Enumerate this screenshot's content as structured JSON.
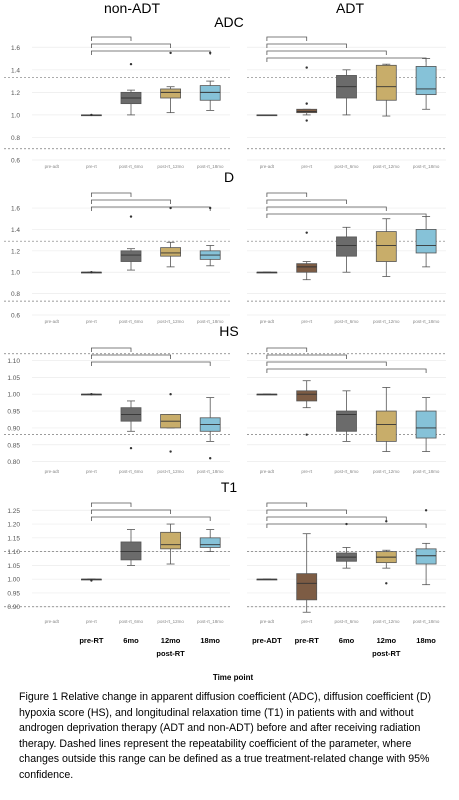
{
  "column_titles": [
    "non-ADT",
    "ADT"
  ],
  "x_axis": {
    "small_ticks": [
      "pre-adt",
      "pre-rt",
      "post-rt_6mo",
      "post-rt_12mo",
      "post-rt_18mo"
    ],
    "labels_nonadt": [
      "pre-RT",
      "6mo",
      "12mo",
      "18mo"
    ],
    "labels_adt": [
      "pre-ADT",
      "pre-RT",
      "6mo",
      "12mo",
      "18mo"
    ],
    "group_label": "post-RT",
    "title": "Time point"
  },
  "colors": {
    "dark_brown": "#7d5c44",
    "grey": "#6b6b6b",
    "tan": "#c8ad6a",
    "blue": "#86c2d8",
    "dashed_line": "#7a7a7a"
  },
  "chart_data": [
    {
      "type": "boxplot",
      "title": "ADC",
      "ylim": [
        0.6,
        1.7
      ],
      "yticks": [
        "0.6",
        "0.8",
        "1.0",
        "1.2",
        "1.4",
        "1.6"
      ],
      "repeatability_lines": [
        1.33,
        0.7
      ],
      "grid": true,
      "panels": [
        {
          "group": "non-ADT",
          "boxes": [
            {
              "tick": "pre-rt",
              "color": "none",
              "stats": [
                1.0,
                1.0,
                1.0,
                1.0,
                1.0
              ],
              "outliers": [
                1.0
              ]
            },
            {
              "tick": "post-rt_6mo",
              "color": "grey",
              "stats": [
                1.0,
                1.1,
                1.15,
                1.2,
                1.22
              ],
              "outliers": [
                1.45
              ]
            },
            {
              "tick": "post-rt_12mo",
              "color": "tan",
              "stats": [
                1.02,
                1.15,
                1.2,
                1.23,
                1.25
              ],
              "outliers": [
                1.55
              ]
            },
            {
              "tick": "post-rt_18mo",
              "color": "blue",
              "stats": [
                1.04,
                1.13,
                1.2,
                1.26,
                1.3
              ],
              "outliers": [
                1.55
              ]
            }
          ],
          "brackets": [
            [
              "pre-rt",
              "post-rt_6mo"
            ],
            [
              "pre-rt",
              "post-rt_12mo"
            ],
            [
              "pre-rt",
              "post-rt_18mo"
            ]
          ]
        },
        {
          "group": "ADT",
          "boxes": [
            {
              "tick": "pre-adt",
              "color": "none",
              "stats": [
                1.0,
                1.0,
                1.0,
                1.0,
                1.0
              ],
              "outliers": []
            },
            {
              "tick": "pre-rt",
              "color": "dark_brown",
              "stats": [
                1.0,
                1.02,
                1.03,
                1.05,
                1.05
              ],
              "outliers": [
                1.42,
                1.1,
                0.95
              ]
            },
            {
              "tick": "post-rt_6mo",
              "color": "grey",
              "stats": [
                1.0,
                1.15,
                1.25,
                1.35,
                1.4
              ],
              "outliers": []
            },
            {
              "tick": "post-rt_12mo",
              "color": "tan",
              "stats": [
                0.99,
                1.13,
                1.25,
                1.44,
                1.45
              ],
              "outliers": []
            },
            {
              "tick": "post-rt_18mo",
              "color": "blue",
              "stats": [
                1.05,
                1.18,
                1.23,
                1.43,
                1.5
              ],
              "outliers": []
            }
          ],
          "brackets": [
            [
              "pre-adt",
              "pre-rt"
            ],
            [
              "pre-adt",
              "post-rt_6mo"
            ],
            [
              "pre-adt",
              "post-rt_12mo"
            ],
            [
              "pre-adt",
              "post-rt_18mo"
            ]
          ]
        }
      ]
    },
    {
      "type": "boxplot",
      "title": "D",
      "ylim": [
        0.6,
        1.75
      ],
      "yticks": [
        "0.6",
        "0.8",
        "1.0",
        "1.2",
        "1.4",
        "1.6"
      ],
      "repeatability_lines": [
        1.29,
        0.73
      ],
      "grid": true,
      "panels": [
        {
          "group": "non-ADT",
          "boxes": [
            {
              "tick": "pre-rt",
              "color": "none",
              "stats": [
                1.0,
                1.0,
                1.0,
                1.0,
                1.0
              ],
              "outliers": [
                1.0
              ]
            },
            {
              "tick": "post-rt_6mo",
              "color": "grey",
              "stats": [
                1.02,
                1.1,
                1.16,
                1.2,
                1.22
              ],
              "outliers": [
                1.52
              ]
            },
            {
              "tick": "post-rt_12mo",
              "color": "tan",
              "stats": [
                1.05,
                1.15,
                1.18,
                1.23,
                1.28
              ],
              "outliers": [
                1.6
              ]
            },
            {
              "tick": "post-rt_18mo",
              "color": "blue",
              "stats": [
                1.06,
                1.12,
                1.16,
                1.2,
                1.25
              ],
              "outliers": [
                1.6
              ]
            }
          ],
          "brackets": [
            [
              "pre-rt",
              "post-rt_6mo"
            ],
            [
              "pre-rt",
              "post-rt_12mo"
            ],
            [
              "pre-rt",
              "post-rt_18mo"
            ]
          ]
        },
        {
          "group": "ADT",
          "boxes": [
            {
              "tick": "pre-adt",
              "color": "none",
              "stats": [
                1.0,
                1.0,
                1.0,
                1.0,
                1.0
              ],
              "outliers": []
            },
            {
              "tick": "pre-rt",
              "color": "dark_brown",
              "stats": [
                0.93,
                1.0,
                1.05,
                1.08,
                1.1
              ],
              "outliers": [
                1.37
              ]
            },
            {
              "tick": "post-rt_6mo",
              "color": "grey",
              "stats": [
                1.0,
                1.15,
                1.25,
                1.33,
                1.42
              ],
              "outliers": []
            },
            {
              "tick": "post-rt_12mo",
              "color": "tan",
              "stats": [
                0.96,
                1.1,
                1.25,
                1.38,
                1.5
              ],
              "outliers": []
            },
            {
              "tick": "post-rt_18mo",
              "color": "blue",
              "stats": [
                1.05,
                1.18,
                1.25,
                1.4,
                1.52
              ],
              "outliers": []
            }
          ],
          "brackets": [
            [
              "pre-adt",
              "pre-rt"
            ],
            [
              "pre-adt",
              "post-rt_6mo"
            ],
            [
              "pre-adt",
              "post-rt_12mo"
            ],
            [
              "pre-adt",
              "post-rt_18mo"
            ]
          ]
        }
      ]
    },
    {
      "type": "boxplot",
      "title": "HS",
      "ylim": [
        0.79,
        1.14
      ],
      "yticks": [
        "0.80",
        "0.85",
        "0.90",
        "0.95",
        "1.00",
        "1.05",
        "1.10"
      ],
      "repeatability_lines": [
        1.12,
        0.88
      ],
      "grid": true,
      "panels": [
        {
          "group": "non-ADT",
          "boxes": [
            {
              "tick": "pre-rt",
              "color": "none",
              "stats": [
                1.0,
                1.0,
                1.0,
                1.0,
                1.0
              ],
              "outliers": [
                1.0
              ]
            },
            {
              "tick": "post-rt_6mo",
              "color": "grey",
              "stats": [
                0.89,
                0.92,
                0.94,
                0.96,
                0.98
              ],
              "outliers": [
                0.84
              ]
            },
            {
              "tick": "post-rt_12mo",
              "color": "tan",
              "stats": [
                0.9,
                0.9,
                0.92,
                0.94,
                0.94
              ],
              "outliers": [
                1.0,
                0.83
              ]
            },
            {
              "tick": "post-rt_18mo",
              "color": "blue",
              "stats": [
                0.86,
                0.89,
                0.91,
                0.93,
                0.99
              ],
              "outliers": [
                0.81
              ]
            }
          ],
          "brackets": [
            [
              "pre-rt",
              "post-rt_6mo"
            ],
            [
              "pre-rt",
              "post-rt_12mo"
            ],
            [
              "pre-rt",
              "post-rt_18mo"
            ]
          ]
        },
        {
          "group": "ADT",
          "boxes": [
            {
              "tick": "pre-adt",
              "color": "none",
              "stats": [
                1.0,
                1.0,
                1.0,
                1.0,
                1.0
              ],
              "outliers": []
            },
            {
              "tick": "pre-rt",
              "color": "dark_brown",
              "stats": [
                0.96,
                0.98,
                1.0,
                1.01,
                1.04
              ],
              "outliers": [
                0.88
              ]
            },
            {
              "tick": "post-rt_6mo",
              "color": "grey",
              "stats": [
                0.86,
                0.89,
                0.94,
                0.95,
                1.01
              ],
              "outliers": []
            },
            {
              "tick": "post-rt_12mo",
              "color": "tan",
              "stats": [
                0.83,
                0.86,
                0.91,
                0.95,
                1.02
              ],
              "outliers": []
            },
            {
              "tick": "post-rt_18mo",
              "color": "blue",
              "stats": [
                0.83,
                0.87,
                0.9,
                0.95,
                0.99
              ],
              "outliers": []
            }
          ],
          "brackets": [
            [
              "pre-adt",
              "pre-rt"
            ],
            [
              "pre-adt",
              "post-rt_6mo"
            ],
            [
              "pre-adt",
              "post-rt_12mo"
            ],
            [
              "pre-adt",
              "post-rt_18mo"
            ]
          ]
        }
      ]
    },
    {
      "type": "boxplot",
      "title": "T1",
      "ylim": [
        0.87,
        1.28
      ],
      "yticks": [
        "0.90",
        "0.95",
        "1.00",
        "1.05",
        "1.10",
        "1.15",
        "1.20",
        "1.25"
      ],
      "repeatability_lines": [
        1.1,
        0.9
      ],
      "grid": true,
      "panels": [
        {
          "group": "non-ADT",
          "boxes": [
            {
              "tick": "pre-rt",
              "color": "none",
              "stats": [
                1.0,
                1.0,
                1.0,
                1.0,
                1.0
              ],
              "outliers": [
                0.995
              ]
            },
            {
              "tick": "post-rt_6mo",
              "color": "grey",
              "stats": [
                1.05,
                1.07,
                1.1,
                1.135,
                1.18
              ],
              "outliers": []
            },
            {
              "tick": "post-rt_12mo",
              "color": "tan",
              "stats": [
                1.055,
                1.11,
                1.125,
                1.17,
                1.2
              ],
              "outliers": []
            },
            {
              "tick": "post-rt_18mo",
              "color": "blue",
              "stats": [
                1.1,
                1.115,
                1.125,
                1.15,
                1.18
              ],
              "outliers": []
            }
          ],
          "brackets": [
            [
              "pre-rt",
              "post-rt_6mo"
            ],
            [
              "pre-rt",
              "post-rt_12mo"
            ],
            [
              "pre-rt",
              "post-rt_18mo"
            ]
          ]
        },
        {
          "group": "ADT",
          "boxes": [
            {
              "tick": "pre-adt",
              "color": "none",
              "stats": [
                1.0,
                1.0,
                1.0,
                1.0,
                1.0
              ],
              "outliers": []
            },
            {
              "tick": "pre-rt",
              "color": "dark_brown",
              "stats": [
                0.88,
                0.925,
                0.985,
                1.02,
                1.165
              ],
              "outliers": []
            },
            {
              "tick": "post-rt_6mo",
              "color": "grey",
              "stats": [
                1.04,
                1.065,
                1.08,
                1.095,
                1.115
              ],
              "outliers": [
                1.2
              ]
            },
            {
              "tick": "post-rt_12mo",
              "color": "tan",
              "stats": [
                1.04,
                1.06,
                1.08,
                1.1,
                1.105
              ],
              "outliers": [
                1.21,
                0.985
              ]
            },
            {
              "tick": "post-rt_18mo",
              "color": "blue",
              "stats": [
                0.98,
                1.055,
                1.085,
                1.11,
                1.13
              ],
              "outliers": [
                1.25
              ]
            }
          ],
          "brackets": [
            [
              "pre-adt",
              "pre-rt"
            ],
            [
              "pre-adt",
              "post-rt_6mo"
            ],
            [
              "pre-adt",
              "post-rt_12mo"
            ],
            [
              "pre-adt",
              "post-rt_18mo"
            ]
          ]
        }
      ]
    }
  ],
  "caption": "Figure 1 Relative change in apparent diffusion coefficient (ADC), diffusion coefficient (D) hypoxia score (HS), and longitudinal relaxation time (T1) in patients with and without androgen deprivation therapy (ADT and non-ADT) before and after receiving radiation therapy. Dashed lines represent the repeatability coefficient of the parameter, where changes outside this range can be defined as a true treatment-related change with 95% confidence."
}
